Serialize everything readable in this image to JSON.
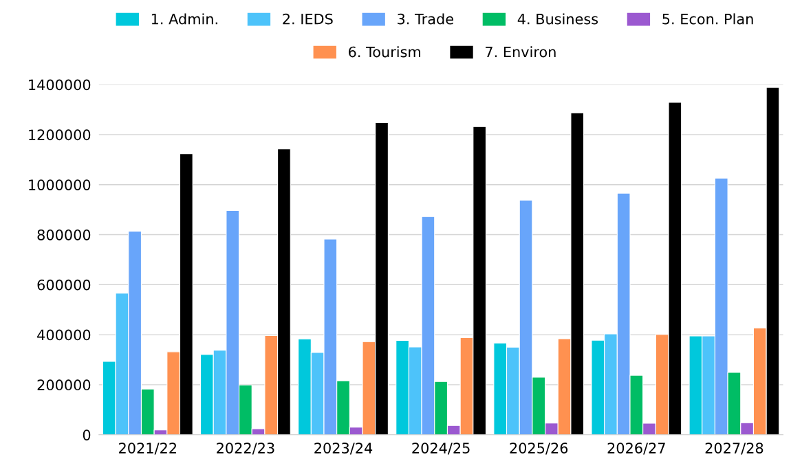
{
  "chart_data": {
    "type": "bar",
    "categories": [
      "2021/22",
      "2022/23",
      "2023/24",
      "2024/25",
      "2025/26",
      "2026/27",
      "2027/28"
    ],
    "series": [
      {
        "name": "1. Admin.",
        "color": "#00c8dc",
        "values": [
          293000,
          321000,
          383000,
          377000,
          367000,
          378000,
          395000
        ]
      },
      {
        "name": "2. IEDS",
        "color": "#4dc3fa",
        "values": [
          566000,
          338000,
          329000,
          351000,
          350000,
          403000,
          395000
        ]
      },
      {
        "name": "3. Trade",
        "color": "#68a5fa",
        "values": [
          814000,
          896000,
          782000,
          872000,
          938000,
          966000,
          1026000
        ]
      },
      {
        "name": "4. Business",
        "color": "#00bd65",
        "values": [
          183000,
          199000,
          216000,
          213000,
          230000,
          238000,
          249000
        ]
      },
      {
        "name": "5. Econ. Plan",
        "color": "#9b59d0",
        "values": [
          19000,
          24000,
          30000,
          37000,
          47000,
          46000,
          48000
        ]
      },
      {
        "name": "6. Tourism",
        "color": "#ff9150",
        "values": [
          332000,
          396000,
          372000,
          388000,
          384000,
          401000,
          427000
        ]
      },
      {
        "name": "7. Environ",
        "color": "#000000",
        "values": [
          1124000,
          1143000,
          1248000,
          1232000,
          1287000,
          1329000,
          1389000
        ]
      }
    ],
    "ylim": [
      0,
      1400000
    ],
    "yticks": [
      0,
      200000,
      400000,
      600000,
      800000,
      1000000,
      1200000,
      1400000
    ],
    "grid": "y",
    "legend": "top"
  }
}
